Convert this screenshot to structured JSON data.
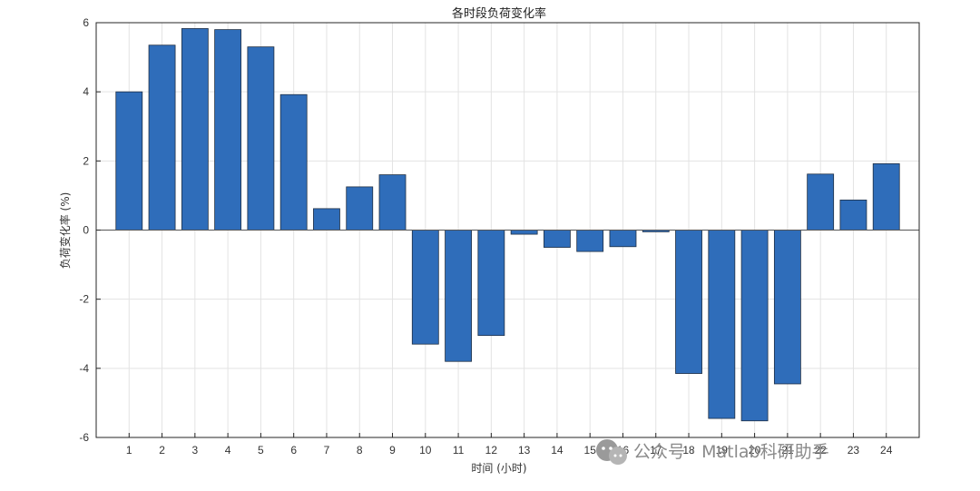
{
  "chart_data": {
    "type": "bar",
    "title": "各时段负荷变化率",
    "xlabel": "时间 (小时)",
    "ylabel": "负荷变化率 (%)",
    "categories": [
      "1",
      "2",
      "3",
      "4",
      "5",
      "6",
      "7",
      "8",
      "9",
      "10",
      "11",
      "12",
      "13",
      "14",
      "15",
      "16",
      "17",
      "18",
      "19",
      "20",
      "21",
      "22",
      "23",
      "24"
    ],
    "values": [
      4.0,
      5.35,
      5.83,
      5.8,
      5.3,
      3.92,
      0.62,
      1.25,
      1.6,
      -3.3,
      -3.8,
      -3.05,
      -0.12,
      -0.5,
      -0.62,
      -0.48,
      -0.05,
      -4.15,
      -5.45,
      -5.52,
      -4.45,
      1.62,
      0.87,
      1.92
    ],
    "ylim": [
      -6,
      6
    ],
    "yticks": [
      -6,
      -4,
      -2,
      0,
      2,
      4,
      6
    ],
    "xlim": [
      0,
      25
    ],
    "grid": true,
    "bar_color": "#2f6dba"
  },
  "watermark": {
    "text": "公众号 · Matlab科研助手",
    "icon": "wechat-icon"
  }
}
